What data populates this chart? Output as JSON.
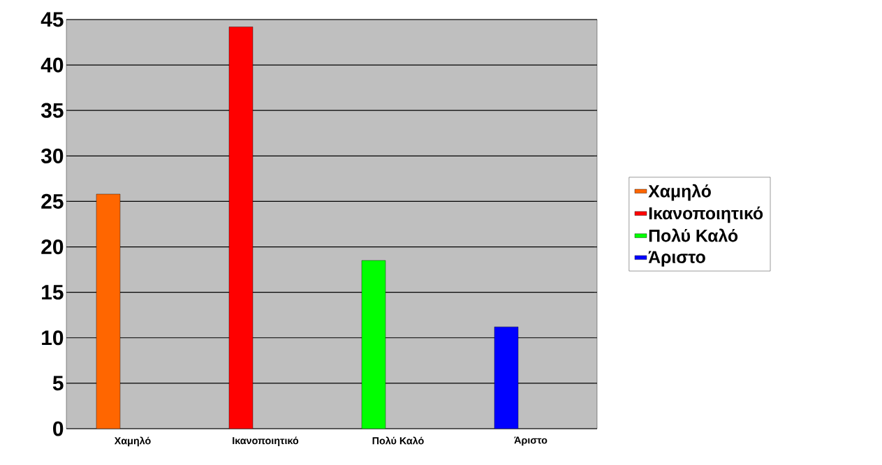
{
  "chart_data": {
    "type": "bar",
    "categories": [
      "Χαμηλό",
      "Ικανοποιητικό",
      "Πολύ Καλό",
      "Άριστο"
    ],
    "series": [
      {
        "name": "Χαμηλό",
        "color": "#ff6600",
        "values": [
          25.8,
          null,
          null,
          null
        ]
      },
      {
        "name": "Ικανοποιητικό",
        "color": "#ff0000",
        "values": [
          null,
          44.2,
          null,
          null
        ]
      },
      {
        "name": "Πολύ Καλό",
        "color": "#00ff00",
        "values": [
          null,
          null,
          18.5,
          null
        ]
      },
      {
        "name": "Άριστο",
        "color": "#0000ff",
        "values": [
          null,
          null,
          null,
          11.2
        ]
      }
    ],
    "ylim": [
      0,
      45
    ],
    "yticks": [
      0,
      5,
      10,
      15,
      20,
      25,
      30,
      35,
      40,
      45
    ],
    "grid": "y",
    "legend": "right"
  }
}
